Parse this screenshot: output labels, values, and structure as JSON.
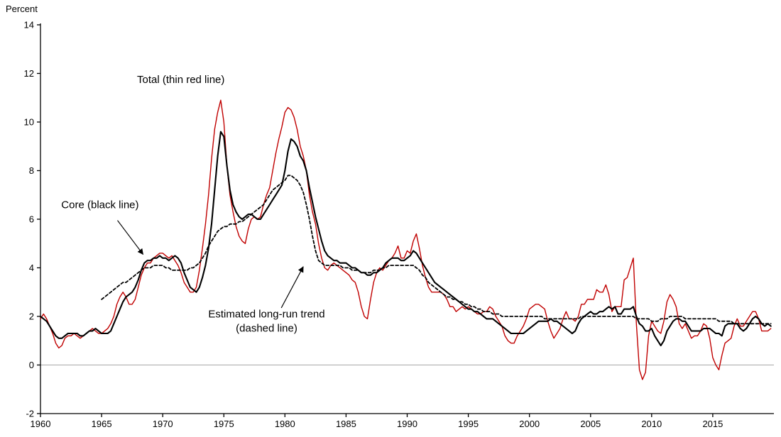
{
  "page": {
    "background": "#ffffff",
    "axis_color": "#000000",
    "zero_line_color": "#a6a6a6"
  },
  "chart_data": {
    "type": "line",
    "title": "",
    "ylabel": "Percent",
    "xlabel": "",
    "ylim": [
      -2,
      14
    ],
    "x_range": [
      1960,
      2020
    ],
    "y_ticks": [
      14,
      12,
      10,
      8,
      6,
      4,
      2,
      0,
      -2
    ],
    "x_ticks": [
      1960,
      1965,
      1970,
      1975,
      1980,
      1985,
      1990,
      1995,
      2000,
      2005,
      2010,
      2015
    ],
    "frequency": "quarterly",
    "grid": false,
    "legend_position": "in-plot-annotations",
    "series": [
      {
        "name": "Total (thin red line)",
        "color": "#c00000",
        "style": "solid",
        "width": 1.4,
        "start_year": 1960,
        "step_years": 0.25,
        "values": [
          1.9,
          2.1,
          1.9,
          1.6,
          1.3,
          0.9,
          0.7,
          0.8,
          1.1,
          1.2,
          1.2,
          1.3,
          1.2,
          1.1,
          1.2,
          1.3,
          1.4,
          1.5,
          1.4,
          1.3,
          1.3,
          1.4,
          1.5,
          1.7,
          2.0,
          2.5,
          2.8,
          3.0,
          2.8,
          2.5,
          2.5,
          2.7,
          3.2,
          3.7,
          4.0,
          4.2,
          4.2,
          4.4,
          4.5,
          4.6,
          4.6,
          4.5,
          4.4,
          4.5,
          4.3,
          4.1,
          3.8,
          3.4,
          3.2,
          3.0,
          3.0,
          3.2,
          3.9,
          4.8,
          5.8,
          7.0,
          8.5,
          9.7,
          10.4,
          10.9,
          10.0,
          8.2,
          7.0,
          6.3,
          5.7,
          5.3,
          5.1,
          5.0,
          5.6,
          6.0,
          6.1,
          6.0,
          6.1,
          6.6,
          7.0,
          7.3,
          8.0,
          8.7,
          9.3,
          9.8,
          10.4,
          10.6,
          10.5,
          10.2,
          9.7,
          9.0,
          8.6,
          8.0,
          7.0,
          6.3,
          5.8,
          5.0,
          4.4,
          4.0,
          3.9,
          4.1,
          4.2,
          4.1,
          4.0,
          3.9,
          3.8,
          3.7,
          3.5,
          3.4,
          3.0,
          2.4,
          2.0,
          1.9,
          2.7,
          3.4,
          3.8,
          4.0,
          3.9,
          4.1,
          4.3,
          4.4,
          4.6,
          4.9,
          4.4,
          4.4,
          4.7,
          4.6,
          5.1,
          5.4,
          4.8,
          4.1,
          3.6,
          3.2,
          3.0,
          3.0,
          3.0,
          3.0,
          2.9,
          2.7,
          2.4,
          2.4,
          2.2,
          2.3,
          2.4,
          2.3,
          2.4,
          2.3,
          2.2,
          2.1,
          2.1,
          2.2,
          2.2,
          2.4,
          2.3,
          2.0,
          1.8,
          1.6,
          1.2,
          1.0,
          0.9,
          0.9,
          1.2,
          1.4,
          1.6,
          1.9,
          2.3,
          2.4,
          2.5,
          2.5,
          2.4,
          2.3,
          1.8,
          1.4,
          1.1,
          1.3,
          1.5,
          1.9,
          2.2,
          1.9,
          1.9,
          1.8,
          2.0,
          2.5,
          2.5,
          2.7,
          2.7,
          2.7,
          3.1,
          3.0,
          3.0,
          3.3,
          2.9,
          2.2,
          2.4,
          2.4,
          2.4,
          3.5,
          3.6,
          4.0,
          4.4,
          1.7,
          -0.2,
          -0.6,
          -0.3,
          1.2,
          1.8,
          1.6,
          1.4,
          1.3,
          1.8,
          2.6,
          2.9,
          2.7,
          2.4,
          1.7,
          1.5,
          1.7,
          1.4,
          1.1,
          1.2,
          1.2,
          1.4,
          1.7,
          1.6,
          1.1,
          0.3,
          0.0,
          -0.2,
          0.4,
          0.9,
          1.0,
          1.1,
          1.6,
          1.9,
          1.6,
          1.6,
          1.8,
          2.0,
          2.2,
          2.2,
          1.9,
          1.4,
          1.4,
          1.4,
          1.5
        ]
      },
      {
        "name": "Core (black line)",
        "color": "#000000",
        "style": "solid",
        "width": 2.1,
        "start_year": 1960,
        "step_years": 0.25,
        "values": [
          2.0,
          1.9,
          1.8,
          1.6,
          1.4,
          1.2,
          1.1,
          1.1,
          1.2,
          1.3,
          1.3,
          1.3,
          1.3,
          1.2,
          1.2,
          1.3,
          1.4,
          1.4,
          1.5,
          1.4,
          1.3,
          1.3,
          1.3,
          1.4,
          1.7,
          2.0,
          2.3,
          2.6,
          2.8,
          2.9,
          3.0,
          3.2,
          3.5,
          3.9,
          4.2,
          4.3,
          4.3,
          4.4,
          4.4,
          4.5,
          4.4,
          4.4,
          4.3,
          4.4,
          4.5,
          4.4,
          4.2,
          3.8,
          3.5,
          3.2,
          3.1,
          3.0,
          3.2,
          3.6,
          4.1,
          4.8,
          5.8,
          7.2,
          8.6,
          9.6,
          9.4,
          8.2,
          7.2,
          6.6,
          6.3,
          6.1,
          6.0,
          6.1,
          6.2,
          6.2,
          6.1,
          6.0,
          6.0,
          6.2,
          6.4,
          6.6,
          6.8,
          7.0,
          7.2,
          7.4,
          8.0,
          8.8,
          9.3,
          9.2,
          9.0,
          8.6,
          8.4,
          8.0,
          7.3,
          6.7,
          6.1,
          5.6,
          5.1,
          4.7,
          4.5,
          4.4,
          4.3,
          4.3,
          4.2,
          4.2,
          4.2,
          4.1,
          4.0,
          4.0,
          3.9,
          3.8,
          3.8,
          3.7,
          3.7,
          3.8,
          3.8,
          3.9,
          4.0,
          4.2,
          4.3,
          4.4,
          4.4,
          4.4,
          4.3,
          4.3,
          4.4,
          4.5,
          4.7,
          4.6,
          4.4,
          4.2,
          4.0,
          3.8,
          3.6,
          3.4,
          3.3,
          3.2,
          3.1,
          3.0,
          2.9,
          2.8,
          2.7,
          2.6,
          2.5,
          2.4,
          2.3,
          2.3,
          2.2,
          2.2,
          2.1,
          2.0,
          1.9,
          1.9,
          1.9,
          1.8,
          1.7,
          1.6,
          1.5,
          1.4,
          1.3,
          1.3,
          1.3,
          1.3,
          1.3,
          1.4,
          1.5,
          1.6,
          1.7,
          1.8,
          1.8,
          1.8,
          1.8,
          1.9,
          1.8,
          1.8,
          1.7,
          1.6,
          1.5,
          1.4,
          1.3,
          1.4,
          1.7,
          1.9,
          2.0,
          2.1,
          2.2,
          2.1,
          2.1,
          2.2,
          2.2,
          2.3,
          2.4,
          2.3,
          2.4,
          2.1,
          2.1,
          2.3,
          2.3,
          2.3,
          2.4,
          2.0,
          1.7,
          1.6,
          1.4,
          1.4,
          1.5,
          1.2,
          1.0,
          0.8,
          1.0,
          1.4,
          1.6,
          1.8,
          1.9,
          1.9,
          1.8,
          1.8,
          1.6,
          1.4,
          1.4,
          1.4,
          1.4,
          1.5,
          1.5,
          1.5,
          1.4,
          1.3,
          1.3,
          1.2,
          1.6,
          1.7,
          1.7,
          1.7,
          1.7,
          1.5,
          1.4,
          1.5,
          1.7,
          1.9,
          2.0,
          1.9,
          1.7,
          1.6,
          1.7,
          1.6
        ]
      },
      {
        "name": "Estimated long-run trend (dashed line)",
        "color": "#000000",
        "style": "dashed",
        "width": 1.8,
        "start_year": 1965,
        "step_years": 0.25,
        "values": [
          2.7,
          2.8,
          2.9,
          3.0,
          3.1,
          3.2,
          3.3,
          3.4,
          3.4,
          3.5,
          3.6,
          3.7,
          3.8,
          3.9,
          4.0,
          4.0,
          4.0,
          4.1,
          4.1,
          4.1,
          4.1,
          4.0,
          4.0,
          3.9,
          3.9,
          3.9,
          3.9,
          3.9,
          3.9,
          4.0,
          4.0,
          4.1,
          4.2,
          4.4,
          4.6,
          4.9,
          5.1,
          5.3,
          5.5,
          5.6,
          5.7,
          5.7,
          5.8,
          5.8,
          5.8,
          5.9,
          5.9,
          6.0,
          6.1,
          6.2,
          6.3,
          6.4,
          6.5,
          6.6,
          6.8,
          7.0,
          7.2,
          7.3,
          7.4,
          7.5,
          7.6,
          7.8,
          7.8,
          7.7,
          7.6,
          7.4,
          7.1,
          6.6,
          6.0,
          5.3,
          4.7,
          4.3,
          4.2,
          4.1,
          4.1,
          4.1,
          4.1,
          4.1,
          4.1,
          4.0,
          4.0,
          4.0,
          3.9,
          3.9,
          3.9,
          3.8,
          3.8,
          3.8,
          3.8,
          3.9,
          3.9,
          3.9,
          4.0,
          4.0,
          4.1,
          4.1,
          4.1,
          4.1,
          4.1,
          4.1,
          4.1,
          4.1,
          4.1,
          4.0,
          3.9,
          3.7,
          3.6,
          3.4,
          3.3,
          3.2,
          3.1,
          3.0,
          2.9,
          2.8,
          2.8,
          2.7,
          2.7,
          2.6,
          2.6,
          2.5,
          2.5,
          2.4,
          2.4,
          2.3,
          2.3,
          2.2,
          2.2,
          2.2,
          2.1,
          2.1,
          2.1,
          2.0,
          2.0,
          2.0,
          2.0,
          2.0,
          2.0,
          2.0,
          2.0,
          2.0,
          2.0,
          2.0,
          2.0,
          2.0,
          2.0,
          1.9,
          1.9,
          1.9,
          1.9,
          1.9,
          1.9,
          1.9,
          1.9,
          1.9,
          1.9,
          1.9,
          1.9,
          2.0,
          2.0,
          2.0,
          2.0,
          2.0,
          2.0,
          2.0,
          2.0,
          2.0,
          2.0,
          2.0,
          2.0,
          2.0,
          2.0,
          2.0,
          2.0,
          2.0,
          2.0,
          1.9,
          1.9,
          1.9,
          1.9,
          1.9,
          1.8,
          1.8,
          1.8,
          1.9,
          1.9,
          1.9,
          2.0,
          2.0,
          2.0,
          2.0,
          2.0,
          1.9,
          1.9,
          1.9,
          1.9,
          1.9,
          1.9,
          1.9,
          1.9,
          1.9,
          1.9,
          1.9,
          1.8,
          1.8,
          1.8,
          1.8,
          1.8,
          1.7,
          1.7,
          1.7,
          1.7,
          1.7,
          1.7,
          1.7,
          1.7,
          1.7,
          1.7,
          1.7,
          1.7,
          1.7
        ]
      }
    ],
    "annotations": [
      {
        "id": "total-label",
        "lines": [
          "Total (thin red line)"
        ],
        "x": 1967.9,
        "y": 11.6,
        "anchor": "start"
      },
      {
        "id": "core-label",
        "lines": [
          "Core (black line)"
        ],
        "x": 1961.7,
        "y": 6.45,
        "anchor": "start",
        "arrow": {
          "x1": 1966.3,
          "y1": 5.95,
          "x2": 1968.4,
          "y2": 4.55
        }
      },
      {
        "id": "trend-label",
        "lines": [
          "Estimated long-run trend",
          "(dashed line)"
        ],
        "x": 1978.5,
        "y": 1.95,
        "anchor": "middle",
        "arrow": {
          "x1": 1979.7,
          "y1": 2.35,
          "x2": 1981.5,
          "y2": 4.05
        }
      }
    ]
  }
}
